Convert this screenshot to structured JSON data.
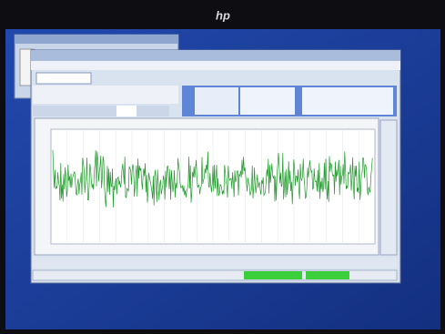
{
  "logo": "hp"
}
